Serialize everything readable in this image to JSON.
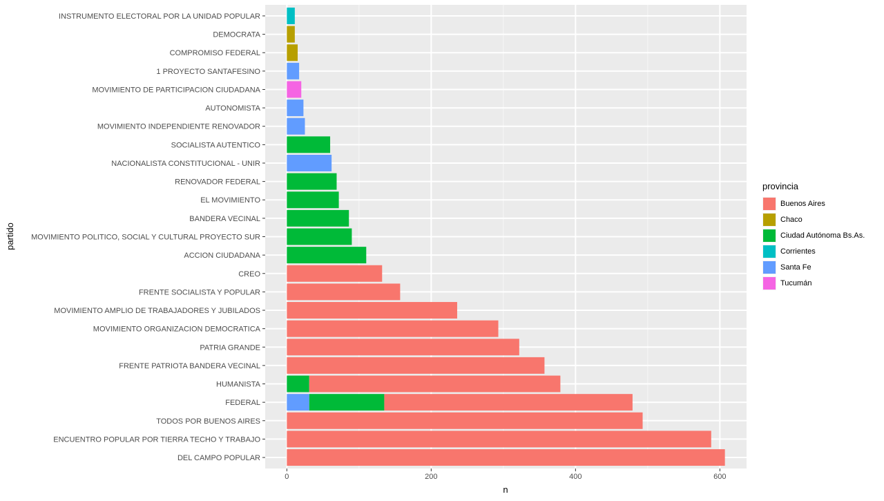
{
  "chart_data": {
    "type": "bar",
    "orientation": "horizontal",
    "stacked": true,
    "xlabel": "n",
    "ylabel": "partido",
    "xlim": [
      -30,
      637
    ],
    "xticks": [
      0,
      200,
      400,
      600
    ],
    "grid": true,
    "legend": {
      "title": "provincia",
      "position": "right"
    },
    "categories": [
      "DEL CAMPO POPULAR",
      "ENCUENTRO POPULAR POR TIERRA TECHO Y TRABAJO",
      "TODOS POR BUENOS AIRES",
      "FEDERAL",
      "HUMANISTA",
      "FRENTE PATRIOTA BANDERA VECINAL",
      "PATRIA GRANDE",
      "MOVIMIENTO ORGANIZACION DEMOCRATICA",
      "MOVIMIENTO AMPLIO DE TRABAJADORES Y JUBILADOS",
      "FRENTE SOCIALISTA Y POPULAR",
      "CREO",
      "ACCION CIUDADANA",
      "MOVIMIENTO POLITICO, SOCIAL Y CULTURAL PROYECTO SUR",
      "BANDERA VECINAL",
      "EL MOVIMIENTO",
      "RENOVADOR FEDERAL",
      "NACIONALISTA CONSTITUCIONAL -  UNIR",
      "SOCIALISTA AUTENTICO",
      "MOVIMIENTO INDEPENDIENTE RENOVADOR",
      "AUTONOMISTA",
      "MOVIMIENTO DE PARTICIPACION CIUDADANA",
      "1 PROYECTO SANTAFESINO",
      "COMPROMISO FEDERAL",
      "DEMOCRATA",
      "INSTRUMENTO ELECTORAL POR LA UNIDAD POPULAR"
    ],
    "series": [
      {
        "name": "Buenos Aires",
        "color": "#F8766D",
        "values": [
          607,
          588,
          493,
          344,
          348,
          357,
          322,
          293,
          236,
          157,
          132,
          0,
          0,
          0,
          0,
          0,
          0,
          0,
          0,
          0,
          0,
          0,
          0,
          0,
          0
        ]
      },
      {
        "name": "Chaco",
        "color": "#B79F00",
        "values": [
          0,
          0,
          0,
          0,
          0,
          0,
          0,
          0,
          0,
          0,
          0,
          0,
          0,
          0,
          0,
          0,
          0,
          0,
          0,
          0,
          0,
          0,
          15,
          11,
          0
        ]
      },
      {
        "name": "Ciudad Autónoma Bs.As.",
        "color": "#00BA38",
        "values": [
          0,
          0,
          0,
          104,
          31,
          0,
          0,
          0,
          0,
          0,
          0,
          110,
          90,
          86,
          72,
          69,
          0,
          60,
          0,
          0,
          0,
          0,
          0,
          0,
          0
        ]
      },
      {
        "name": "Corrientes",
        "color": "#00BFC4",
        "values": [
          0,
          0,
          0,
          0,
          0,
          0,
          0,
          0,
          0,
          0,
          0,
          0,
          0,
          0,
          0,
          0,
          0,
          0,
          0,
          0,
          0,
          0,
          0,
          0,
          11
        ]
      },
      {
        "name": "Santa Fe",
        "color": "#619CFF",
        "values": [
          0,
          0,
          0,
          31,
          0,
          0,
          0,
          0,
          0,
          0,
          0,
          0,
          0,
          0,
          0,
          0,
          62,
          0,
          25,
          23,
          0,
          17,
          0,
          0,
          0
        ]
      },
      {
        "name": "Tucumán",
        "color": "#F564E3",
        "values": [
          0,
          0,
          0,
          0,
          0,
          0,
          0,
          0,
          0,
          0,
          0,
          0,
          0,
          0,
          0,
          0,
          0,
          0,
          0,
          0,
          20,
          0,
          0,
          0,
          0
        ]
      }
    ],
    "stack_order": [
      "Santa Fe",
      "Ciudad Autónoma Bs.As.",
      "Buenos Aires",
      "Chaco",
      "Corrientes",
      "Tucumán"
    ]
  }
}
